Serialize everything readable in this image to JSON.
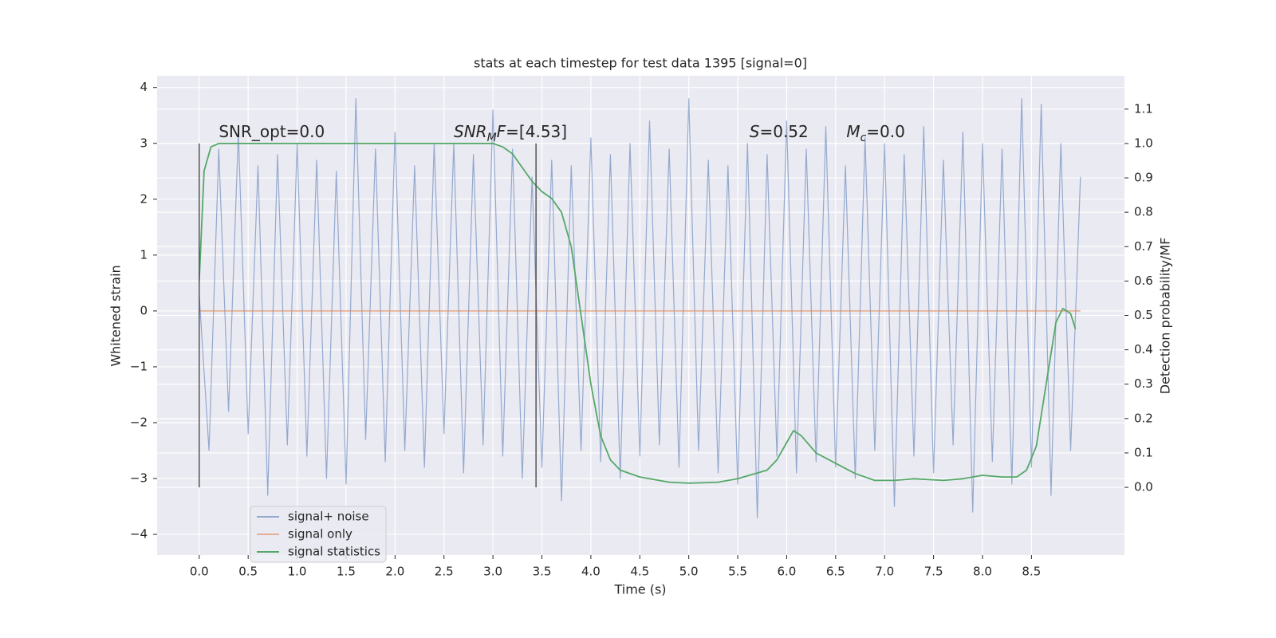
{
  "chart_data": {
    "type": "line",
    "title": "stats at each timestep for test data 1395 [signal=0]",
    "xlabel": "Time (s)",
    "ylabel": "Whitened strain",
    "y2label": "Detection probability/MF",
    "xlim": [
      -0.43,
      9.45
    ],
    "ylim": [
      -4.37,
      4.21
    ],
    "y2lim": [
      -0.197,
      1.197
    ],
    "xticks": [
      {
        "value": 0,
        "label": "0.0"
      },
      {
        "value": 0.5,
        "label": "0.5"
      },
      {
        "value": 1,
        "label": "1.0"
      },
      {
        "value": 1.5,
        "label": "1.5"
      },
      {
        "value": 2,
        "label": "2.0"
      },
      {
        "value": 2.5,
        "label": "2.5"
      },
      {
        "value": 3,
        "label": "3.0"
      },
      {
        "value": 3.5,
        "label": "3.5"
      },
      {
        "value": 4,
        "label": "4.0"
      },
      {
        "value": 4.5,
        "label": "4.5"
      },
      {
        "value": 5,
        "label": "5.0"
      },
      {
        "value": 5.5,
        "label": "5.5"
      },
      {
        "value": 6,
        "label": "6.0"
      },
      {
        "value": 6.5,
        "label": "6.5"
      },
      {
        "value": 7,
        "label": "7.0"
      },
      {
        "value": 7.5,
        "label": "7.5"
      },
      {
        "value": 8,
        "label": "8.0"
      },
      {
        "value": 8.5,
        "label": "8.5"
      }
    ],
    "yticks": [
      {
        "value": -4,
        "label": "−4"
      },
      {
        "value": -3,
        "label": "−3"
      },
      {
        "value": -2,
        "label": "−2"
      },
      {
        "value": -1,
        "label": "−1"
      },
      0,
      1,
      2,
      3,
      4
    ],
    "y2ticks": [
      {
        "value": 0,
        "label": "0.0"
      },
      {
        "value": 0.1,
        "label": "0.1"
      },
      {
        "value": 0.2,
        "label": "0.2"
      },
      {
        "value": 0.3,
        "label": "0.3"
      },
      {
        "value": 0.4,
        "label": "0.4"
      },
      {
        "value": 0.5,
        "label": "0.5"
      },
      {
        "value": 0.6,
        "label": "0.6"
      },
      {
        "value": 0.7,
        "label": "0.7"
      },
      {
        "value": 0.8,
        "label": "0.8"
      },
      {
        "value": 0.9,
        "label": "0.9"
      },
      {
        "value": 1,
        "label": "1.0"
      },
      {
        "value": 1.1,
        "label": "1.1"
      }
    ],
    "grid": true,
    "legend": "lower left",
    "series": [
      {
        "name": "signal+ noise",
        "color": "#4c72b0",
        "opacity": 0.55,
        "x": [
          0,
          0.1,
          0.2,
          0.3,
          0.4,
          0.5,
          0.6,
          0.7,
          0.8,
          0.9,
          1,
          1.1,
          1.2,
          1.3,
          1.4,
          1.5,
          1.6,
          1.7,
          1.8,
          1.9,
          2,
          2.1,
          2.2,
          2.3,
          2.4,
          2.5,
          2.6,
          2.7,
          2.8,
          2.9,
          3,
          3.1,
          3.2,
          3.3,
          3.4,
          3.5,
          3.6,
          3.7,
          3.8,
          3.9,
          4,
          4.1,
          4.2,
          4.3,
          4.4,
          4.5,
          4.6,
          4.7,
          4.8,
          4.9,
          5,
          5.1,
          5.2,
          5.3,
          5.4,
          5.5,
          5.6,
          5.7,
          5.8,
          5.9,
          6,
          6.1,
          6.2,
          6.3,
          6.4,
          6.5,
          6.6,
          6.7,
          6.8,
          6.9,
          7,
          7.1,
          7.2,
          7.3,
          7.4,
          7.5,
          7.6,
          7.7,
          7.8,
          7.9,
          8,
          8.1,
          8.2,
          8.3,
          8.4,
          8.5,
          8.6,
          8.7,
          8.8,
          8.9,
          9
        ],
        "values": [
          0.3,
          -2.5,
          2.9,
          -1.8,
          3.2,
          -2.2,
          2.6,
          -3.3,
          2.8,
          -2.4,
          3.0,
          -2.6,
          2.7,
          -3.0,
          2.5,
          -3.1,
          3.8,
          -2.3,
          2.9,
          -2.7,
          3.2,
          -2.5,
          2.6,
          -2.8,
          3.0,
          -2.2,
          3.0,
          -2.9,
          2.8,
          -2.4,
          3.6,
          -2.6,
          2.9,
          -3.0,
          2.4,
          -2.8,
          2.7,
          -3.4,
          2.6,
          -2.5,
          3.1,
          -2.7,
          2.8,
          -3.0,
          3.0,
          -2.6,
          3.4,
          -2.4,
          2.9,
          -2.8,
          3.8,
          -2.5,
          2.7,
          -2.9,
          2.6,
          -3.1,
          3.0,
          -3.7,
          2.8,
          -2.6,
          3.4,
          -2.9,
          2.9,
          -2.7,
          3.3,
          -2.8,
          2.6,
          -3.0,
          3.1,
          -2.5,
          3.0,
          -3.5,
          2.8,
          -2.6,
          3.3,
          -2.9,
          2.7,
          -2.4,
          3.2,
          -3.6,
          3.0,
          -2.7,
          2.9,
          -3.1,
          3.8,
          -2.8,
          3.7,
          -3.3,
          3.0,
          -2.5,
          2.4
        ]
      },
      {
        "name": "signal only",
        "color": "#dd8452",
        "opacity": 0.6,
        "x": [
          0,
          9
        ],
        "values": [
          0,
          0
        ]
      },
      {
        "name": "signal statistics",
        "color": "#55a868",
        "opacity": 1,
        "axis": "y2",
        "x": [
          0,
          0.05,
          0.12,
          0.2,
          1,
          2,
          3,
          3.1,
          3.2,
          3.3,
          3.4,
          3.5,
          3.6,
          3.7,
          3.8,
          3.9,
          4,
          4.1,
          4.2,
          4.3,
          4.5,
          4.8,
          5,
          5.3,
          5.5,
          5.8,
          5.9,
          6,
          6.07,
          6.15,
          6.3,
          6.5,
          6.7,
          6.9,
          7.1,
          7.3,
          7.6,
          7.8,
          8,
          8.2,
          8.35,
          8.45,
          8.55,
          8.65,
          8.75,
          8.82,
          8.9,
          8.95
        ],
        "values": [
          0.6,
          0.92,
          0.99,
          1.0,
          1.0,
          1.0,
          1.0,
          0.99,
          0.97,
          0.93,
          0.89,
          0.86,
          0.84,
          0.8,
          0.7,
          0.5,
          0.3,
          0.15,
          0.08,
          0.05,
          0.03,
          0.015,
          0.012,
          0.015,
          0.025,
          0.05,
          0.08,
          0.13,
          0.165,
          0.15,
          0.1,
          0.07,
          0.04,
          0.02,
          0.02,
          0.025,
          0.02,
          0.025,
          0.035,
          0.03,
          0.03,
          0.05,
          0.12,
          0.3,
          0.48,
          0.52,
          0.505,
          0.46
        ]
      }
    ],
    "vlines": {
      "x": [
        0,
        3.44
      ],
      "ymin": 0,
      "ymax": 1,
      "axis": "y2",
      "color": "#555555"
    },
    "annotations": [
      {
        "x": 0.2,
        "y": 3,
        "parts": [
          {
            "t": "SNR_opt=0.0"
          }
        ]
      },
      {
        "x": 2.6,
        "y": 3,
        "parts": [
          {
            "t": "SNR",
            "i": true
          },
          {
            "t": "M",
            "i": true,
            "sub": true
          },
          {
            "t": "F",
            "i": true
          },
          {
            "t": "=[4.53]"
          }
        ]
      },
      {
        "x": 5.62,
        "y": 3,
        "parts": [
          {
            "t": "S",
            "i": true
          },
          {
            "t": "=0.52"
          }
        ]
      },
      {
        "x": 6.61,
        "y": 3,
        "parts": [
          {
            "t": "M",
            "i": true
          },
          {
            "t": "c",
            "i": true,
            "sub": true
          },
          {
            "t": "=0.0"
          }
        ]
      }
    ]
  }
}
